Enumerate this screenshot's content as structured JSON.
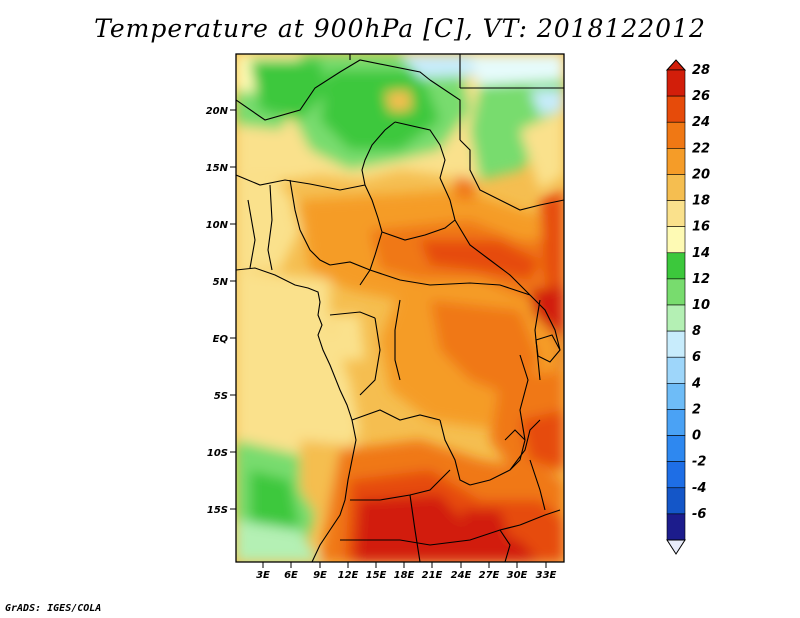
{
  "title": "Temperature at 900hPa [C], VT: 2018122012",
  "credit": "GrADS: IGES/COLA",
  "map": {
    "region": "Central Africa",
    "variable": "Temperature at 900hPa",
    "units": "C",
    "valid_time": "2018122012",
    "lat_labels": [
      "20N",
      "15N",
      "10N",
      "5N",
      "EQ",
      "5S",
      "10S",
      "15S"
    ],
    "lon_labels": [
      "3E",
      "6E",
      "9E",
      "12E",
      "15E",
      "18E",
      "21E",
      "24E",
      "27E",
      "30E",
      "33E"
    ]
  },
  "colorbar": {
    "levels": [
      "28",
      "26",
      "24",
      "22",
      "20",
      "18",
      "16",
      "14",
      "12",
      "10",
      "8",
      "6",
      "4",
      "2",
      "0",
      "-2",
      "-4",
      "-6"
    ],
    "colors": [
      "#ffffff",
      "#1c1c8c",
      "#1456c8",
      "#1e6ee6",
      "#2e88f0",
      "#4aa2f5",
      "#6ebcf7",
      "#9ed6fa",
      "#c8ecfc",
      "#b4f0b4",
      "#78dc6e",
      "#3cc83c",
      "#fefab4",
      "#fae18c",
      "#f5be50",
      "#f59c28",
      "#f07814",
      "#e64b0a",
      "#d21e0a",
      "#ffffff"
    ]
  }
}
